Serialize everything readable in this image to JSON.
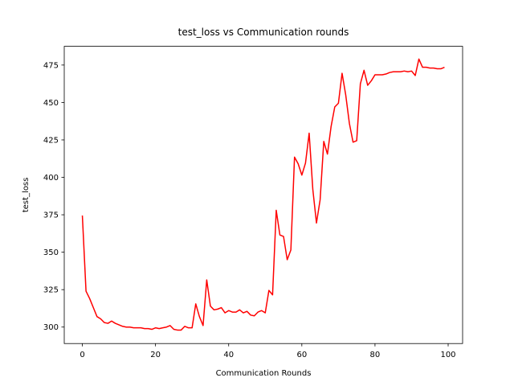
{
  "chart_data": {
    "type": "line",
    "title": "test_loss vs Communication rounds",
    "x_label": "Communication Rounds",
    "y_label": "test_loss",
    "x": [
      0,
      1,
      2,
      3,
      4,
      5,
      6,
      7,
      8,
      9,
      10,
      11,
      12,
      13,
      14,
      15,
      16,
      17,
      18,
      19,
      20,
      21,
      22,
      23,
      24,
      25,
      26,
      27,
      28,
      29,
      30,
      31,
      32,
      33,
      34,
      35,
      36,
      37,
      38,
      39,
      40,
      41,
      42,
      43,
      44,
      45,
      46,
      47,
      48,
      49,
      50,
      51,
      52,
      53,
      54,
      55,
      56,
      57,
      58,
      59,
      60,
      61,
      62,
      63,
      64,
      65,
      66,
      67,
      68,
      69,
      70,
      71,
      72,
      73,
      74,
      75,
      76,
      77,
      78,
      79,
      80,
      81,
      82,
      83,
      84,
      85,
      86,
      87,
      88,
      89,
      90,
      91,
      92,
      93,
      94,
      95,
      96,
      97,
      98,
      99
    ],
    "series": [
      {
        "name": "test_loss",
        "color": "#ff0000",
        "values": [
          374.5,
          324,
          319,
          313,
          307,
          305.5,
          303,
          302.5,
          304,
          302.5,
          301.5,
          300.5,
          300,
          300,
          299.5,
          299.5,
          299.5,
          299,
          299,
          298.5,
          299.5,
          299,
          299.5,
          300,
          301,
          298.5,
          298,
          298,
          300.5,
          299.5,
          299.5,
          315.5,
          307,
          301,
          331.5,
          314,
          311.5,
          312,
          313,
          309.5,
          311,
          310,
          310,
          311.5,
          309.5,
          310.5,
          308,
          307.5,
          310,
          311,
          309.5,
          324.5,
          321.5,
          378,
          361.5,
          360.5,
          345,
          351.5,
          413.5,
          409,
          401.5,
          409.5,
          429.5,
          392,
          369.5,
          385,
          424,
          415.5,
          434,
          447,
          449.5,
          469.5,
          455,
          436,
          423.5,
          424.5,
          462.5,
          471.5,
          461.5,
          464.5,
          468.5,
          468.5,
          468.5,
          469,
          470,
          470.5,
          470.5,
          470.5,
          471,
          470.5,
          471,
          468,
          479,
          473.5,
          473.5,
          473,
          473,
          472.5,
          472.5,
          473.5
        ]
      }
    ],
    "xlim": [
      -4.95,
      103.95
    ],
    "ylim": [
      289,
      487.5
    ],
    "xticks": [
      0,
      20,
      40,
      60,
      80,
      100
    ],
    "yticks": [
      300,
      325,
      350,
      375,
      400,
      425,
      450,
      475
    ]
  }
}
